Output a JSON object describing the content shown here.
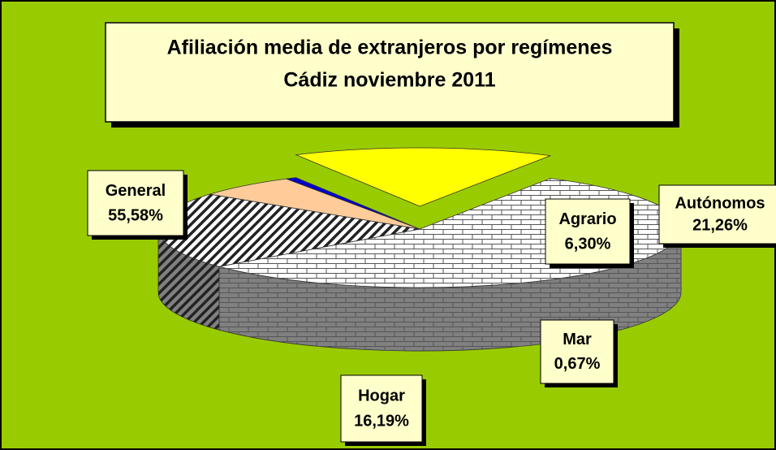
{
  "chart_data": {
    "type": "pie3d",
    "title": "Afiliación  media de extranjeros por regímenes",
    "subtitle": "Cádiz noviembre 2011",
    "categories": [
      "General",
      "Autónomos",
      "Agrario",
      "Mar",
      "Hogar"
    ],
    "values": [
      55.58,
      21.26,
      6.3,
      0.67,
      16.19
    ],
    "value_labels": [
      "55,58%",
      "21,26%",
      "6,30%",
      "0,67%",
      "16,19%"
    ],
    "colors": [
      "#ffffff",
      "#ffffff",
      "#ffcc99",
      "#0000cc",
      "#ffff00"
    ],
    "patterns": [
      "brick",
      "diagonal",
      "solid",
      "solid",
      "solid"
    ],
    "exploded": "Hogar"
  }
}
